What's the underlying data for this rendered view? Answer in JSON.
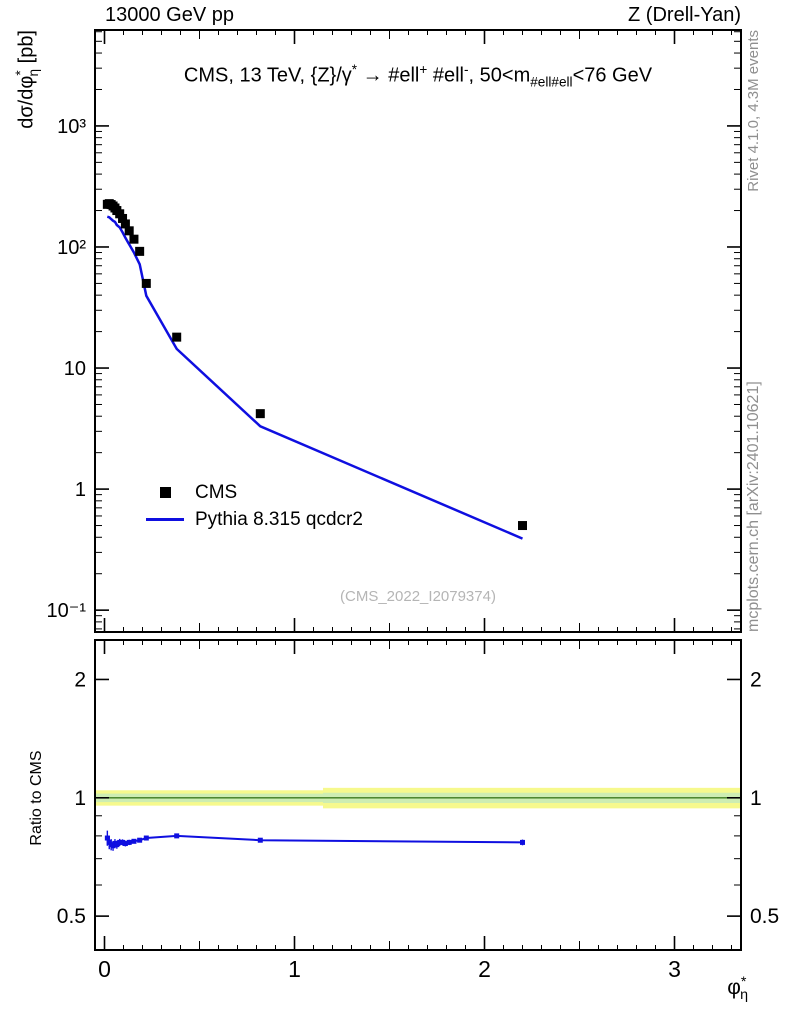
{
  "header": {
    "left": "13000 GeV pp",
    "right": "Z (Drell-Yan)"
  },
  "title_parts": [
    {
      "t": "CMS, 13 TeV, {Z}/γ"
    },
    {
      "t": "*",
      "s": "sup"
    },
    {
      "t": " →  #ell"
    },
    {
      "t": "+",
      "s": "sup"
    },
    {
      "t": " #ell"
    },
    {
      "t": "-",
      "s": "sup"
    },
    {
      "t": ", 50<m"
    },
    {
      "t": "#ell#ell",
      "s": "sub"
    },
    {
      "t": "<76 GeV"
    }
  ],
  "watermark": "(CMS_2022_I2079374)",
  "side_texts": {
    "top": "Rivet 4.1.0,  4.3M events",
    "bottom": "mcplots.cern.ch [arXiv:2401.10621]"
  },
  "legend": {
    "items": [
      {
        "label": "CMS",
        "type": "marker",
        "color": "#000000"
      },
      {
        "label": "Pythia 8.315 qcdcr2",
        "type": "line",
        "color": "#0f0fe0"
      }
    ]
  },
  "axes": {
    "ylabel_main_parts": [
      {
        "t": "dσ/dφ"
      },
      {
        "t": "*",
        "s": "sup"
      },
      {
        "t": "η",
        "s": "subtight"
      },
      {
        "t": " [pb]"
      }
    ],
    "ylabel_ratio": "Ratio to CMS",
    "xlabel_parts": [
      {
        "t": "φ"
      },
      {
        "t": "*",
        "s": "sup"
      },
      {
        "t": "η",
        "s": "subtight"
      }
    ]
  },
  "chart_data": [
    {
      "type": "scatter",
      "panel": "main",
      "title": "CMS, 13 TeV, Z/γ* → ell+ ell-, 50<m_ellell<76 GeV",
      "xlabel": "φ*_η",
      "ylabel": "dσ/dφ*_η [pb]",
      "xscale": "linear",
      "yscale": "log",
      "xlim": [
        -0.05,
        3.35
      ],
      "ylim": [
        0.066,
        6200
      ],
      "xticks": [
        0,
        1,
        2,
        3
      ],
      "xtick_labels": [
        "0",
        "1",
        "2",
        "3"
      ],
      "yticks": [
        0.1,
        1,
        10,
        100,
        1000
      ],
      "ytick_labels": [
        "10⁻¹",
        "1",
        "10",
        "10²",
        "10³"
      ],
      "legend_position": "center-left",
      "grid": false,
      "series": [
        {
          "name": "CMS",
          "type": "scatter",
          "marker": "filled-square",
          "color": "#000000",
          "x": [
            0.015,
            0.025,
            0.035,
            0.045,
            0.055,
            0.065,
            0.08,
            0.095,
            0.11,
            0.13,
            0.155,
            0.185,
            0.22,
            0.38,
            0.82,
            2.2
          ],
          "y": [
            225,
            228,
            224,
            218,
            210,
            200,
            188,
            172,
            155,
            136,
            116,
            92,
            50,
            18,
            4.2,
            0.5
          ],
          "yerr": [
            6,
            6,
            6,
            5,
            5,
            5,
            4,
            4,
            4,
            3,
            3,
            2.5,
            1.5,
            0.6,
            0.18,
            0.04
          ]
        },
        {
          "name": "Pythia 8.315 qcdcr2",
          "type": "line",
          "color": "#0f0fe0",
          "x": [
            0.015,
            0.025,
            0.035,
            0.045,
            0.055,
            0.065,
            0.08,
            0.095,
            0.11,
            0.13,
            0.155,
            0.185,
            0.22,
            0.38,
            0.82,
            2.2
          ],
          "y": [
            178,
            176,
            170,
            165,
            161,
            152,
            145,
            132,
            119,
            105,
            90,
            72,
            39.5,
            14.4,
            3.3,
            0.39
          ]
        }
      ]
    },
    {
      "type": "line",
      "panel": "ratio",
      "ylabel": "Ratio to CMS",
      "xscale": "linear",
      "yscale": "log",
      "xlim": [
        -0.05,
        3.35
      ],
      "ylim": [
        0.41,
        2.52
      ],
      "yticks": [
        0.5,
        1,
        2
      ],
      "ytick_labels": [
        "0.5",
        "1",
        "2"
      ],
      "reference_line": 1,
      "reference_line_color": "#3d7a1e",
      "bands": [
        {
          "x0": -0.05,
          "x1": 1.15,
          "lo": 0.955,
          "hi": 1.045,
          "color": "#f6f98d"
        },
        {
          "x0": 1.15,
          "x1": 3.35,
          "lo": 0.94,
          "hi": 1.06,
          "color": "#f6f98d"
        },
        {
          "x0": -0.05,
          "x1": 1.15,
          "lo": 0.975,
          "hi": 1.025,
          "color": "#cdedb2"
        },
        {
          "x0": 1.15,
          "x1": 3.35,
          "lo": 0.97,
          "hi": 1.03,
          "color": "#cdedb2"
        }
      ],
      "series": [
        {
          "name": "Pythia 8.315 qcdcr2 / CMS",
          "color": "#0f0fe0",
          "x": [
            0.015,
            0.025,
            0.035,
            0.045,
            0.055,
            0.065,
            0.08,
            0.095,
            0.11,
            0.13,
            0.155,
            0.185,
            0.22,
            0.38,
            0.82,
            2.2
          ],
          "y": [
            0.79,
            0.77,
            0.76,
            0.755,
            0.765,
            0.76,
            0.77,
            0.77,
            0.765,
            0.77,
            0.775,
            0.78,
            0.79,
            0.8,
            0.78,
            0.77
          ],
          "yerr": [
            0.035,
            0.03,
            0.025,
            0.022,
            0.02,
            0.018,
            0.016,
            0.014,
            0.013,
            0.012,
            0.01,
            0.009,
            0.008,
            0.007,
            0.009,
            0.013
          ]
        }
      ]
    }
  ]
}
